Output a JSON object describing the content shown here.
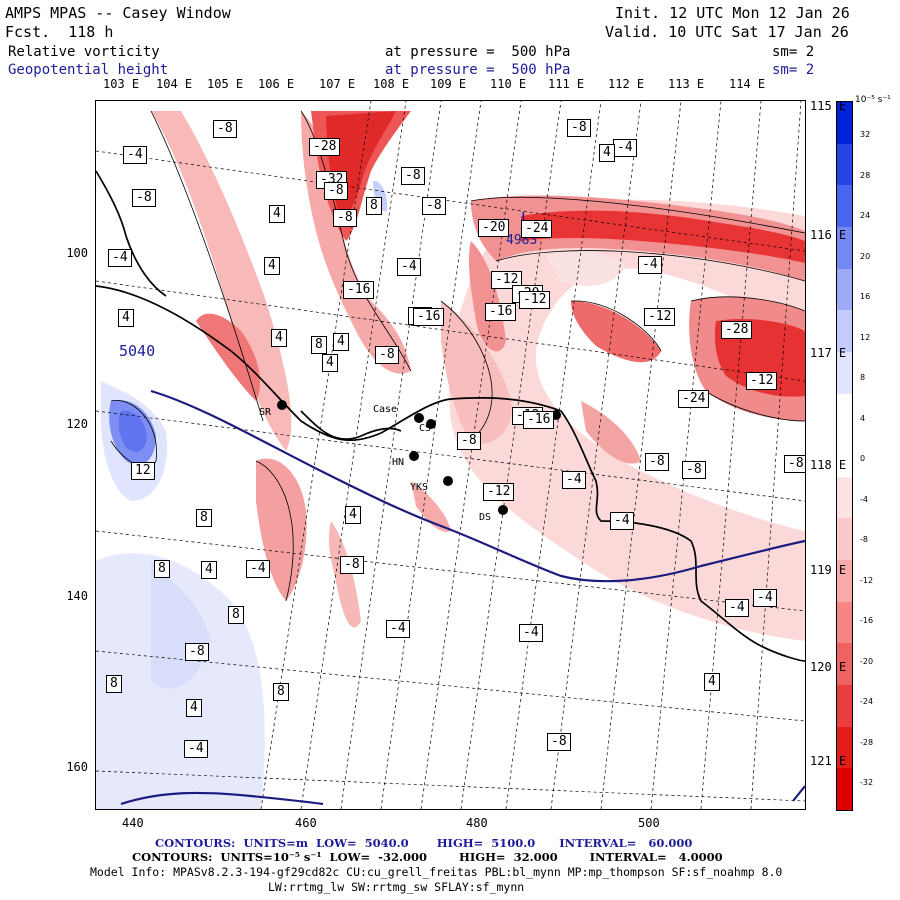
{
  "header": {
    "model": "AMPS MPAS -- Casey Window",
    "forecast": "Fcst.  118 h",
    "init": "Init. 12 UTC Mon 12 Jan 26",
    "valid": "Valid. 10 UTC Sat 17 Jan 26",
    "field1": {
      "name": "Relative vorticity",
      "level": "at pressure =  500 hPa",
      "smooth": "sm= 2"
    },
    "field2": {
      "name": "Geopotential height",
      "level": "at pressure =  500 hPa",
      "smooth": "sm= 2"
    }
  },
  "axes": {
    "lon_labels": [
      "103 E",
      "104 E",
      "105 E",
      "106 E",
      "107 E",
      "108 E",
      "109 E",
      "110 E",
      "111 E",
      "112 E",
      "113 E",
      "114 E"
    ],
    "lat_labels": [
      "115 E",
      "116 E",
      "117 E",
      "118 E",
      "119 E",
      "120 E",
      "121 E"
    ],
    "y_ticks": [
      "100",
      "120",
      "140",
      "160"
    ],
    "x_ticks": [
      "440",
      "460",
      "480",
      "500"
    ]
  },
  "colorbar": {
    "unit": "10⁻⁵ s⁻¹",
    "labels": [
      "32",
      "28",
      "24",
      "20",
      "16",
      "12",
      "8",
      "4",
      "0",
      "-4",
      "-8",
      "-12",
      "-16",
      "-20",
      "-24",
      "-28",
      "-32"
    ],
    "colors": [
      "#0022d8",
      "#2444e6",
      "#4b66ee",
      "#7488f2",
      "#9eaaf6",
      "#c3cbfa",
      "#e2e6fc",
      "#ffffff",
      "#ffffff",
      "#fde4e4",
      "#fbc9c9",
      "#f8a9a9",
      "#f48686",
      "#ef6262",
      "#ea3d3d",
      "#e31c1c",
      "#dd0000"
    ]
  },
  "map": {
    "height_contour_label": "5040",
    "low_label": "L",
    "low_value": "4983",
    "stations": [
      "SR",
      "Case",
      "CS",
      "HN",
      "YKS",
      "DS",
      "LD"
    ],
    "contour_labels": [
      "-8",
      "-4",
      "-28",
      "-8",
      "-8",
      "-32",
      "-8",
      "8",
      "-8",
      "-20",
      "-24",
      "-4",
      "4",
      "4",
      "-4",
      "4",
      "-8",
      "-8",
      "-12",
      "-16",
      "-16",
      "-4",
      "-16",
      "-12",
      "-20",
      "-28",
      "8",
      "4",
      "-12",
      "-4",
      "4",
      "-8",
      "4",
      "-12",
      "-24",
      "-8",
      "-16",
      "-12",
      "-8",
      "12",
      "-8",
      "-8",
      "-4",
      "-12",
      "4",
      "-8",
      "-4",
      "-4",
      "-8",
      "4",
      "-8",
      "4",
      "8",
      "-4",
      "-4",
      "-4",
      "8",
      "8",
      "4",
      "-4",
      "8",
      "8",
      "4",
      "-4",
      "-4"
    ]
  },
  "footer": {
    "line1": "CONTOURS:  UNITS=m  LOW=  5040.0       HIGH=  5100.0      INTERVAL=   60.000",
    "line2": "CONTOURS:  UNITS=10⁻⁵ s⁻¹  LOW=  -32.000        HIGH=  32.000        INTERVAL=   4.0000",
    "line3": "Model Info: MPASv8.2.3-194-gf29cd82c CU:cu_grell_freitas PBL:bl_mynn MP:mp_thompson SF:sf_noahmp 8.0",
    "line4": "LW:rrtmg_lw SW:rrtmg_sw SFLAY:sf_mynn"
  }
}
